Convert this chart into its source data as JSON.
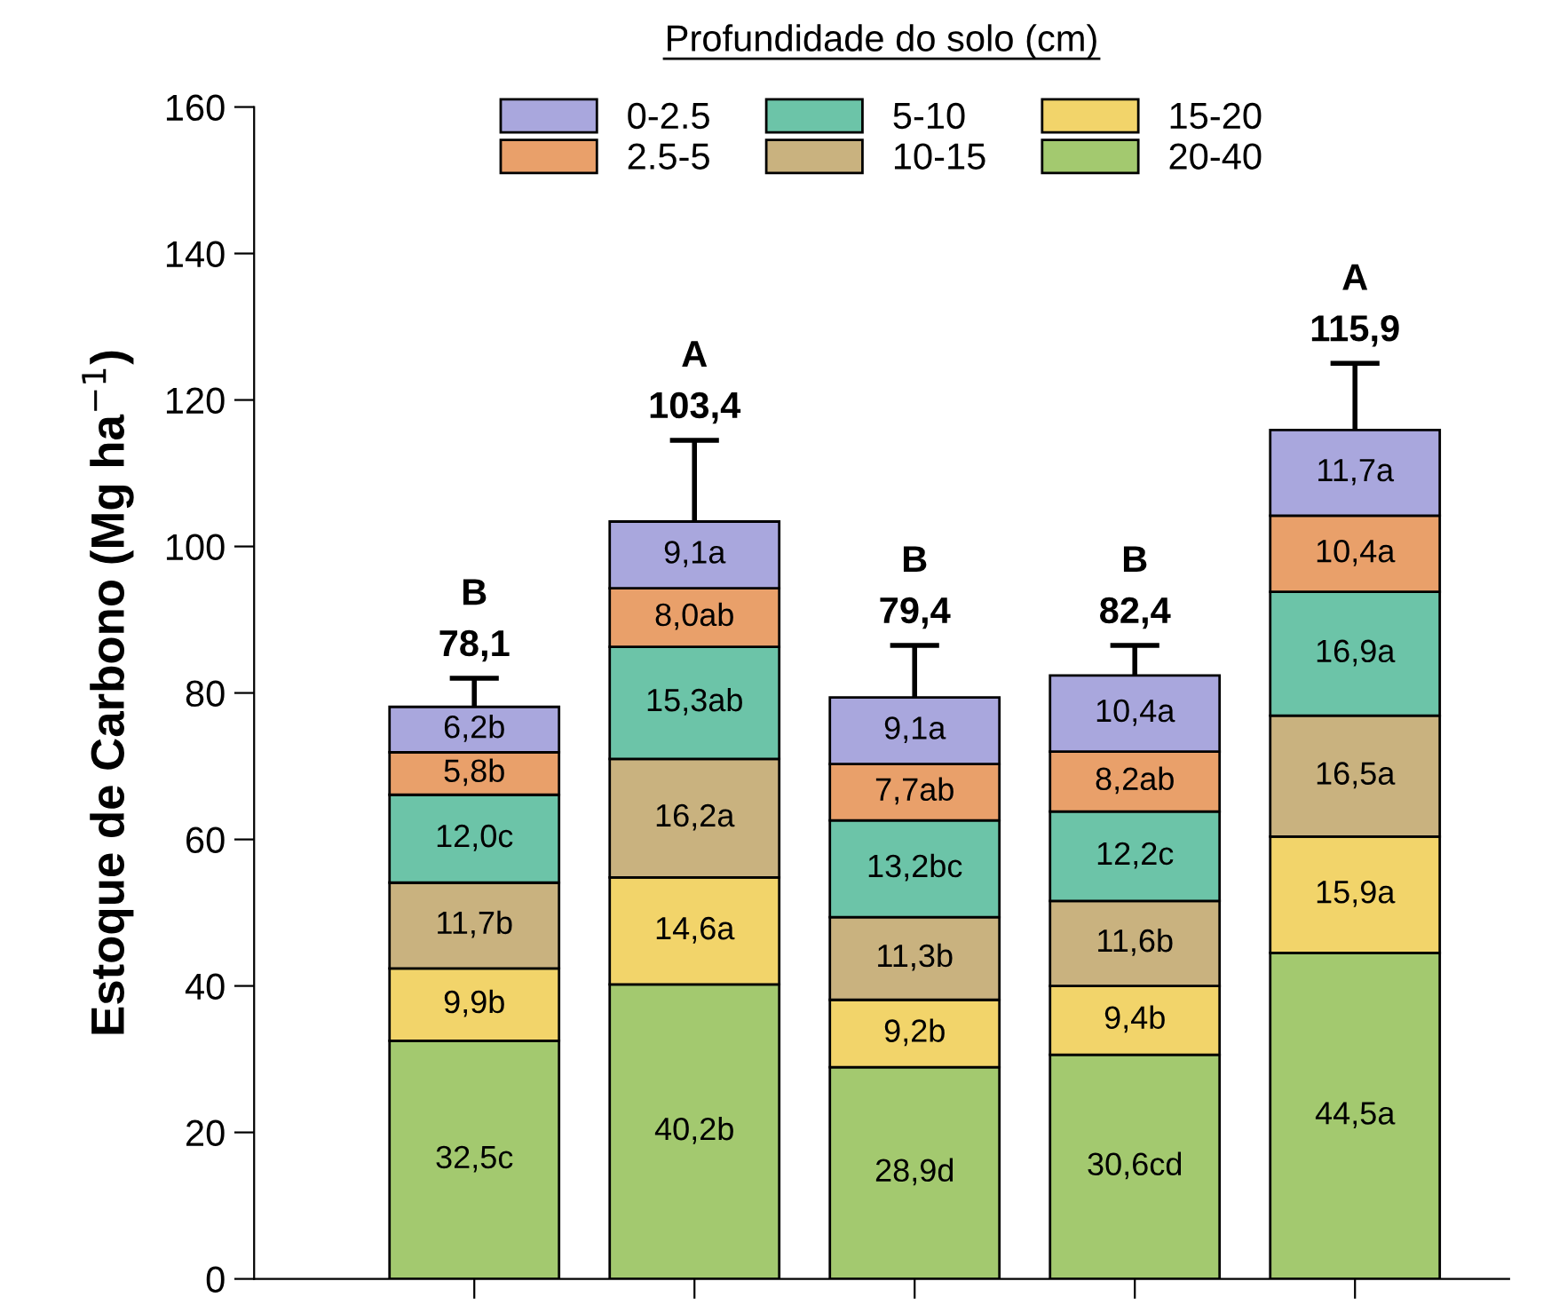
{
  "chart_data": {
    "type": "bar",
    "stacked": true,
    "ylabel": "Estoque de Carbono (Mg ha$^{−1}$)",
    "legend_title": "Profundidade do solo (cm)",
    "categories": [
      null,
      null,
      null,
      null,
      null
    ],
    "series": [
      {
        "name": "20-40",
        "color": "#a3c96f",
        "values": [
          32.5,
          40.2,
          28.9,
          30.6,
          44.5
        ],
        "value_labels": [
          "32,5c",
          "40,2b",
          "28,9d",
          "30,6cd",
          "44,5a"
        ]
      },
      {
        "name": "15-20",
        "color": "#f2d46a",
        "values": [
          9.9,
          14.6,
          9.2,
          9.4,
          15.9
        ],
        "value_labels": [
          "9,9b",
          "14,6a",
          "9,2b",
          "9,4b",
          "15,9a"
        ]
      },
      {
        "name": "10-15",
        "color": "#c9b27f",
        "values": [
          11.7,
          16.2,
          11.3,
          11.6,
          16.5
        ],
        "value_labels": [
          "11,7b",
          "16,2a",
          "11,3b",
          "11,6b",
          "16,5a"
        ]
      },
      {
        "name": "5-10",
        "color": "#6cc4a8",
        "values": [
          12.0,
          15.3,
          13.2,
          12.2,
          16.9
        ],
        "value_labels": [
          "12,0c",
          "15,3ab",
          "13,2bc",
          "12,2c",
          "16,9a"
        ]
      },
      {
        "name": "2.5-5",
        "color": "#e9a06a",
        "values": [
          5.8,
          8.0,
          7.7,
          8.2,
          10.4
        ],
        "value_labels": [
          "5,8b",
          "8,0ab",
          "7,7ab",
          "8,2ab",
          "10,4a"
        ]
      },
      {
        "name": "0-2.5",
        "color": "#a9a7dd",
        "values": [
          6.2,
          9.1,
          9.1,
          10.4,
          11.7
        ],
        "value_labels": [
          "6,2b",
          "9,1a",
          "9,1a",
          "10,4a",
          "11,7a"
        ],
        "errors": [
          [
            78.1,
            82
          ],
          [
            103.4,
            114.5
          ],
          [
            79.4,
            86.5
          ],
          [
            82.4,
            86.5
          ],
          [
            115.9,
            125
          ]
        ]
      }
    ],
    "totals": [
      "78,1",
      "103,4",
      "79,4",
      "82,4",
      "115,9"
    ],
    "annotations": [
      "B",
      "A",
      "B",
      "B",
      "A"
    ],
    "ylim": [
      0,
      160
    ],
    "yticks": [
      0,
      20,
      40,
      60,
      80,
      100,
      120,
      140,
      160
    ],
    "tick_labels": "y",
    "legend": "top",
    "grid": false
  }
}
